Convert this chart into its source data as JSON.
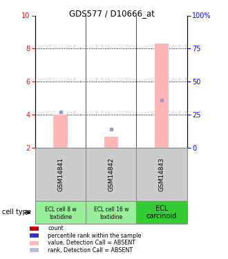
{
  "title": "GDS577 / D10666_at",
  "samples": [
    "GSM14841",
    "GSM14842",
    "GSM14843"
  ],
  "ylim": [
    2,
    10
  ],
  "y2lim": [
    0,
    100
  ],
  "yticks": [
    2,
    4,
    6,
    8,
    10
  ],
  "y2ticks": [
    0,
    25,
    50,
    75,
    100
  ],
  "y2ticklabels": [
    "0",
    "25",
    "50",
    "75",
    "100%"
  ],
  "bar_values": [
    4.0,
    2.65,
    8.3
  ],
  "bar_color": "#FFB6B6",
  "rank_markers": [
    4.18,
    3.1,
    4.88
  ],
  "rank_color": "#9999CC",
  "cell_labels": [
    [
      "ECL cell 8 w",
      "loxtidine"
    ],
    [
      "ECL cell 16 w",
      "loxtidine"
    ],
    [
      "ECL\ncarcinoid"
    ]
  ],
  "cell_colors": [
    "#99EE99",
    "#99EE99",
    "#33CC33"
  ],
  "cell_type_label": "cell type",
  "legend_items": [
    {
      "color": "#CC0000",
      "label": "count"
    },
    {
      "color": "#3333CC",
      "label": "percentile rank within the sample"
    },
    {
      "color": "#FFB6B6",
      "label": "value, Detection Call = ABSENT"
    },
    {
      "color": "#BBBBDD",
      "label": "rank, Detection Call = ABSENT"
    }
  ],
  "sample_box_color": "#CCCCCC",
  "dotted_grid": [
    4,
    6,
    8
  ]
}
